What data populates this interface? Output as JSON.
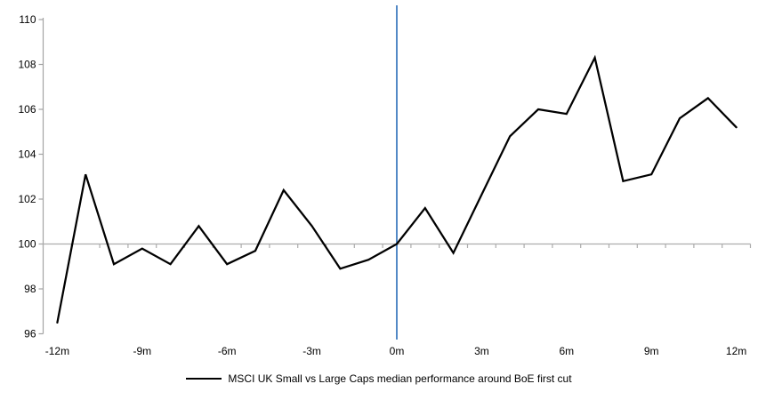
{
  "chart_data": {
    "type": "line",
    "title": "",
    "xlabel": "",
    "ylabel": "",
    "x": [
      -12,
      -11,
      -10,
      -9,
      -8,
      -7,
      -6,
      -5,
      -4,
      -3,
      -2,
      -1,
      0,
      1,
      2,
      3,
      4,
      5,
      6,
      7,
      8,
      9,
      10,
      11,
      12
    ],
    "series": [
      {
        "name": "MSCI UK Small vs Large Caps median performance around BoE first cut",
        "values": [
          96.5,
          103.1,
          99.1,
          99.8,
          99.1,
          100.8,
          99.1,
          99.7,
          102.4,
          100.8,
          98.9,
          99.3,
          100.0,
          101.6,
          99.6,
          102.2,
          104.8,
          106.0,
          105.8,
          108.3,
          102.8,
          103.1,
          105.6,
          106.5,
          105.2
        ],
        "color": "#000000"
      }
    ],
    "ylim": [
      96,
      110
    ],
    "yticks": [
      96,
      98,
      100,
      102,
      104,
      106,
      108,
      110
    ],
    "xticks": [
      {
        "month": -12,
        "label": "-12m"
      },
      {
        "month": -9,
        "label": "-9m"
      },
      {
        "month": -6,
        "label": "-6m"
      },
      {
        "month": -3,
        "label": "-3m"
      },
      {
        "month": 0,
        "label": "0m"
      },
      {
        "month": 3,
        "label": "3m"
      },
      {
        "month": 6,
        "label": "6m"
      },
      {
        "month": 9,
        "label": "9m"
      },
      {
        "month": 12,
        "label": "12m"
      }
    ],
    "baseline_value": 100,
    "event_line_month": 0,
    "grid": "off",
    "legend_position": "bottom",
    "colors": {
      "axis": "#A3A3A3",
      "baseline": "#ACACAC",
      "event_line": "#5389C6",
      "series": "#000000",
      "text": "#000000"
    },
    "legend": {
      "label": "MSCI UK Small vs Large Caps median performance around BoE first cut"
    }
  }
}
